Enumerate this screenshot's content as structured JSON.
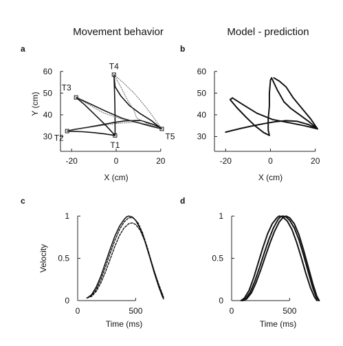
{
  "figure": {
    "titles": {
      "left": "Movement behavior",
      "right": "Model - prediction"
    }
  },
  "chart_data": [
    {
      "id": "a",
      "panel_label": "a",
      "type": "line",
      "xlabel": "X (cm)",
      "ylabel": "Y (cm)",
      "xlim": [
        -25,
        25
      ],
      "ylim": [
        20,
        65
      ],
      "xticks": [
        -20,
        0,
        20
      ],
      "yticks": [
        30,
        40,
        50,
        60
      ],
      "grid": false,
      "colors": {
        "line": "#111111",
        "dotted": "#555555"
      },
      "targets": [
        {
          "label": "T1",
          "x": -0.5,
          "y": 30.5
        },
        {
          "label": "T2",
          "x": -22,
          "y": 32.5
        },
        {
          "label": "T3",
          "x": -18,
          "y": 48
        },
        {
          "label": "T4",
          "x": -1,
          "y": 58.5
        },
        {
          "label": "T5",
          "x": 20.5,
          "y": 33.5
        }
      ],
      "series": [
        {
          "style": "solid",
          "points": [
            [
              -0.5,
              30.5
            ],
            [
              -5,
              31.2
            ],
            [
              -10,
              31.8
            ],
            [
              -15,
              32.2
            ],
            [
              -20,
              32.4
            ],
            [
              -22,
              32.5
            ],
            [
              -19,
              33.2
            ],
            [
              -13,
              34.2
            ],
            [
              -7,
              35.3
            ],
            [
              -2,
              36.3
            ],
            [
              4,
              37.2
            ],
            [
              11,
              37.4
            ],
            [
              17,
              35.5
            ],
            [
              20.5,
              33.5
            ],
            [
              16,
              37.2
            ],
            [
              11,
              40.4
            ],
            [
              6,
              44.2
            ],
            [
              2,
              48.8
            ],
            [
              -0.5,
              53
            ],
            [
              -1,
              58.5
            ],
            [
              -0.8,
              53
            ],
            [
              -0.6,
              45
            ],
            [
              -0.5,
              38
            ],
            [
              -0.5,
              30.5
            ],
            [
              -5,
              35.5
            ],
            [
              -10,
              40.5
            ],
            [
              -14,
              44.5
            ],
            [
              -18,
              48
            ],
            [
              -12,
              45.2
            ],
            [
              -5,
              41.8
            ],
            [
              3,
              38.3
            ],
            [
              10,
              36.3
            ],
            [
              16,
              34.6
            ],
            [
              20.5,
              33.5
            ]
          ]
        },
        {
          "style": "dotted",
          "points": [
            [
              -1,
              58.5
            ],
            [
              3,
              55
            ],
            [
              8,
              50
            ],
            [
              13,
              44
            ],
            [
              17,
              38.5
            ],
            [
              20.5,
              33.5
            ]
          ]
        },
        {
          "style": "dotted",
          "points": [
            [
              -1,
              58.5
            ],
            [
              2,
              53
            ],
            [
              5,
              47
            ],
            [
              8,
              42
            ],
            [
              9,
              39
            ],
            [
              10,
              38
            ],
            [
              14,
              36
            ],
            [
              20.5,
              33.5
            ]
          ]
        },
        {
          "style": "dotted",
          "points": [
            [
              -22,
              32.5
            ],
            [
              -16,
              33.6
            ],
            [
              -8,
              34.8
            ],
            [
              0,
              36
            ],
            [
              8,
              36.6
            ],
            [
              14,
              35.6
            ],
            [
              20.5,
              33.5
            ]
          ]
        },
        {
          "style": "dotted",
          "points": [
            [
              -18,
              48
            ],
            [
              -12,
              44.5
            ],
            [
              -6,
              41
            ],
            [
              2,
              38.2
            ],
            [
              10,
              36.6
            ],
            [
              20.5,
              33.5
            ]
          ]
        }
      ]
    },
    {
      "id": "b",
      "panel_label": "b",
      "type": "line",
      "xlabel": "X (cm)",
      "ylabel": "",
      "xlim": [
        -25,
        25
      ],
      "ylim": [
        20,
        65
      ],
      "xticks": [
        -20,
        0,
        20
      ],
      "yticks": [
        30,
        40,
        50,
        60
      ],
      "grid": false,
      "colors": {
        "line": "#111111"
      },
      "series": [
        {
          "style": "solid",
          "points": [
            [
              -20,
              32
            ],
            [
              -17,
              32.8
            ],
            [
              -13,
              33.8
            ],
            [
              -8,
              34.9
            ],
            [
              -3,
              35.9
            ],
            [
              2,
              36.8
            ],
            [
              7,
              37.3
            ],
            [
              12,
              37
            ],
            [
              17,
              35.5
            ],
            [
              21,
              33.5
            ],
            [
              17,
              37
            ],
            [
              13,
              40
            ],
            [
              9,
              43
            ],
            [
              6,
              46
            ],
            [
              3,
              51.5
            ],
            [
              0.5,
              57
            ],
            [
              0,
              56
            ],
            [
              -0.5,
              50
            ],
            [
              -0.5,
              44
            ],
            [
              -1,
              38
            ],
            [
              -1,
              33
            ],
            [
              -0.5,
              30.5
            ],
            [
              -3,
              31.8
            ],
            [
              -7,
              35
            ],
            [
              -11,
              39
            ],
            [
              -15,
              43.3
            ],
            [
              -18,
              47
            ],
            [
              -17,
              47.8
            ],
            [
              -12,
              44.5
            ],
            [
              -6,
              40.7
            ],
            [
              1,
              37.8
            ],
            [
              8,
              36.4
            ],
            [
              15,
              35
            ],
            [
              21,
              33.5
            ],
            [
              18,
              38
            ],
            [
              14,
              43
            ],
            [
              10,
              48
            ],
            [
              7,
              52.8
            ],
            [
              4,
              55.5
            ],
            [
              1.5,
              57
            ]
          ]
        }
      ]
    },
    {
      "id": "c",
      "panel_label": "c",
      "type": "line",
      "xlabel": "Time (ms)",
      "ylabel": "Velocity",
      "xlim": [
        0,
        800
      ],
      "ylim": [
        0,
        1.05
      ],
      "xticks": [
        0,
        500
      ],
      "yticks": [
        0,
        0.5,
        1
      ],
      "grid": false,
      "colors": {
        "line": "#111111"
      },
      "series": [
        {
          "style": "solid",
          "points": [
            [
              80,
              0.03
            ],
            [
              120,
              0.07
            ],
            [
              160,
              0.16
            ],
            [
              200,
              0.29
            ],
            [
              240,
              0.45
            ],
            [
              280,
              0.61
            ],
            [
              320,
              0.76
            ],
            [
              360,
              0.88
            ],
            [
              400,
              0.96
            ],
            [
              420,
              0.99
            ],
            [
              440,
              1.0
            ],
            [
              470,
              0.99
            ],
            [
              500,
              0.95
            ],
            [
              540,
              0.85
            ],
            [
              580,
              0.7
            ],
            [
              620,
              0.52
            ],
            [
              660,
              0.33
            ],
            [
              700,
              0.16
            ],
            [
              730,
              0.05
            ],
            [
              740,
              0.02
            ]
          ]
        },
        {
          "style": "dashed",
          "points": [
            [
              80,
              0.03
            ],
            [
              120,
              0.05
            ],
            [
              160,
              0.11
            ],
            [
              200,
              0.21
            ],
            [
              240,
              0.34
            ],
            [
              280,
              0.49
            ],
            [
              320,
              0.64
            ],
            [
              360,
              0.77
            ],
            [
              400,
              0.86
            ],
            [
              440,
              0.91
            ],
            [
              470,
              0.92
            ],
            [
              500,
              0.9
            ],
            [
              540,
              0.83
            ],
            [
              580,
              0.7
            ],
            [
              620,
              0.53
            ],
            [
              660,
              0.35
            ],
            [
              700,
              0.19
            ],
            [
              730,
              0.08
            ],
            [
              740,
              0.04
            ]
          ]
        },
        {
          "style": "dashed",
          "points": [
            [
              80,
              0.03
            ],
            [
              120,
              0.06
            ],
            [
              160,
              0.13
            ],
            [
              200,
              0.25
            ],
            [
              240,
              0.4
            ],
            [
              280,
              0.56
            ],
            [
              320,
              0.71
            ],
            [
              360,
              0.84
            ],
            [
              400,
              0.93
            ],
            [
              440,
              0.98
            ],
            [
              480,
              0.98
            ],
            [
              520,
              0.92
            ],
            [
              560,
              0.8
            ],
            [
              600,
              0.63
            ],
            [
              640,
              0.44
            ],
            [
              680,
              0.26
            ],
            [
              720,
              0.1
            ],
            [
              740,
              0.04
            ]
          ]
        }
      ]
    },
    {
      "id": "d",
      "panel_label": "d",
      "type": "line",
      "xlabel": "Time (ms)",
      "ylabel": "",
      "xlim": [
        0,
        800
      ],
      "ylim": [
        0,
        1.05
      ],
      "xticks": [
        0,
        500
      ],
      "yticks": [
        0,
        0.5,
        1
      ],
      "grid": false,
      "colors": {
        "line": "#111111"
      },
      "series": [
        {
          "style": "solid",
          "points": [
            [
              90,
              0
            ],
            [
              120,
              0.02
            ],
            [
              160,
              0.1
            ],
            [
              200,
              0.23
            ],
            [
              240,
              0.39
            ],
            [
              280,
              0.56
            ],
            [
              320,
              0.72
            ],
            [
              360,
              0.86
            ],
            [
              400,
              0.96
            ],
            [
              420,
              0.99
            ],
            [
              440,
              1.0
            ],
            [
              470,
              0.99
            ],
            [
              500,
              0.95
            ],
            [
              540,
              0.86
            ],
            [
              580,
              0.72
            ],
            [
              620,
              0.54
            ],
            [
              660,
              0.34
            ],
            [
              700,
              0.15
            ],
            [
              730,
              0.04
            ],
            [
              750,
              0
            ]
          ]
        },
        {
          "style": "solid",
          "points": [
            [
              100,
              0
            ],
            [
              130,
              0.02
            ],
            [
              170,
              0.09
            ],
            [
              210,
              0.21
            ],
            [
              250,
              0.36
            ],
            [
              290,
              0.52
            ],
            [
              330,
              0.68
            ],
            [
              370,
              0.82
            ],
            [
              410,
              0.93
            ],
            [
              440,
              0.98
            ],
            [
              470,
              1.0
            ],
            [
              500,
              0.98
            ],
            [
              540,
              0.91
            ],
            [
              580,
              0.78
            ],
            [
              620,
              0.6
            ],
            [
              660,
              0.4
            ],
            [
              700,
              0.2
            ],
            [
              735,
              0.05
            ],
            [
              755,
              0
            ]
          ]
        },
        {
          "style": "solid",
          "points": [
            [
              80,
              0
            ],
            [
              110,
              0.03
            ],
            [
              150,
              0.12
            ],
            [
              190,
              0.27
            ],
            [
              230,
              0.45
            ],
            [
              270,
              0.63
            ],
            [
              310,
              0.79
            ],
            [
              350,
              0.91
            ],
            [
              390,
              0.98
            ],
            [
              410,
              1.0
            ],
            [
              440,
              0.99
            ],
            [
              480,
              0.94
            ],
            [
              520,
              0.84
            ],
            [
              560,
              0.69
            ],
            [
              600,
              0.51
            ],
            [
              640,
              0.32
            ],
            [
              680,
              0.15
            ],
            [
              715,
              0.04
            ],
            [
              735,
              0
            ]
          ]
        }
      ]
    }
  ]
}
